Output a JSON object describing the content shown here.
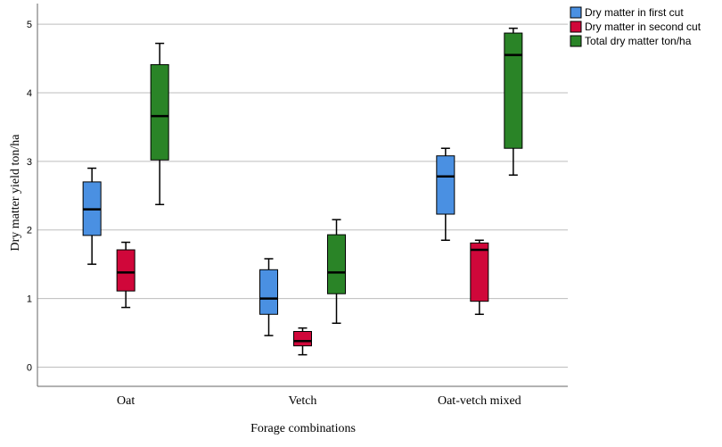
{
  "chart_data": {
    "type": "boxplot",
    "title": "",
    "xlabel": "Forage combinations",
    "ylabel": "Dry matter yield ton/ha",
    "ylim": [
      -0.28,
      5.3
    ],
    "yticks": [
      0,
      1,
      2,
      3,
      4,
      5
    ],
    "grid": true,
    "legend_position": "top-right",
    "categories": [
      "Oat",
      "Vetch",
      "Oat-vetch mixed"
    ],
    "series": [
      {
        "name": "Dry matter in first cut",
        "color": "#4a90e2",
        "boxes": [
          {
            "min": 1.5,
            "q1": 1.92,
            "median": 2.3,
            "q3": 2.7,
            "max": 2.9
          },
          {
            "min": 0.46,
            "q1": 0.77,
            "median": 1.0,
            "q3": 1.42,
            "max": 1.58
          },
          {
            "min": 1.85,
            "q1": 2.23,
            "median": 2.78,
            "q3": 3.08,
            "max": 3.19
          }
        ]
      },
      {
        "name": "Dry matter in second cut",
        "color": "#d0073a",
        "boxes": [
          {
            "min": 0.87,
            "q1": 1.11,
            "median": 1.38,
            "q3": 1.71,
            "max": 1.82
          },
          {
            "min": 0.18,
            "q1": 0.31,
            "median": 0.38,
            "q3": 0.52,
            "max": 0.57
          },
          {
            "min": 0.77,
            "q1": 0.96,
            "median": 1.71,
            "q3": 1.81,
            "max": 1.85
          }
        ]
      },
      {
        "name": "Total dry matter ton/ha",
        "color": "#2a8427",
        "boxes": [
          {
            "min": 2.37,
            "q1": 3.02,
            "median": 3.66,
            "q3": 4.41,
            "max": 4.72
          },
          {
            "min": 0.64,
            "q1": 1.07,
            "median": 1.38,
            "q3": 1.93,
            "max": 2.15
          },
          {
            "min": 2.8,
            "q1": 3.19,
            "median": 4.55,
            "q3": 4.87,
            "max": 4.94
          }
        ]
      }
    ]
  }
}
